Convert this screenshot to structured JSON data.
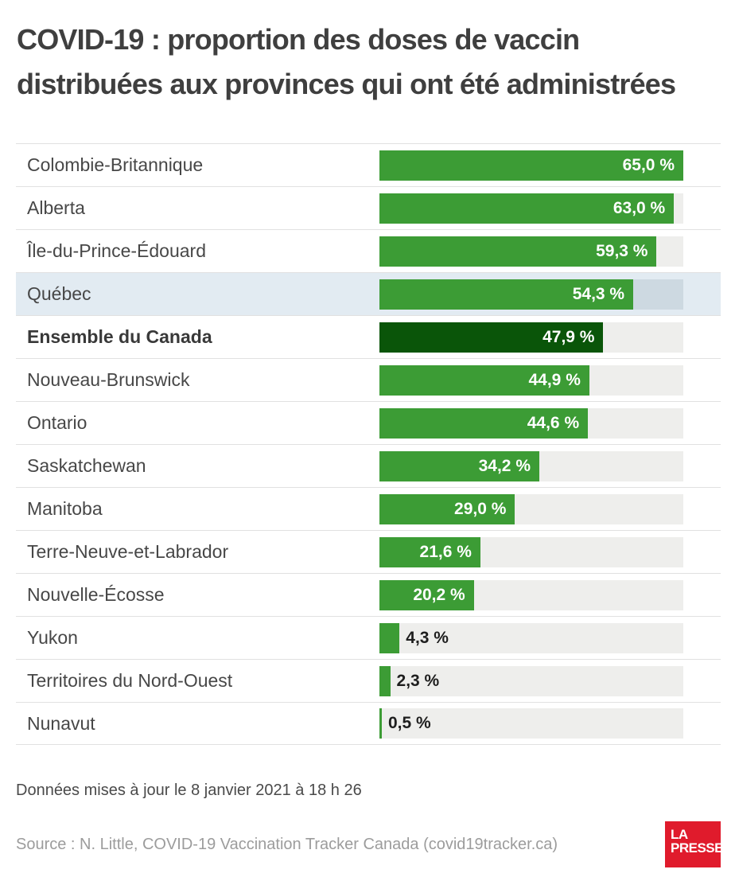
{
  "title": {
    "line1": "COVID-19 : proportion des doses de vaccin",
    "line2": "distribuées aux provinces qui ont été administrées"
  },
  "chart_data": {
    "type": "bar",
    "orientation": "horizontal",
    "title": "COVID-19 : proportion des doses de vaccin distribuées aux provinces qui ont été administrées",
    "unit": "%",
    "xlabel": "",
    "ylabel": "",
    "xlim": [
      0,
      65
    ],
    "scale_max": 65,
    "grid": false,
    "legend": "none",
    "categories": [
      "Colombie-Britannique",
      "Alberta",
      "Île-du-Prince-Édouard",
      "Québec",
      "Ensemble du Canada",
      "Nouveau-Brunswick",
      "Ontario",
      "Saskatchewan",
      "Manitoba",
      "Terre-Neuve-et-Labrador",
      "Nouvelle-Écosse",
      "Yukon",
      "Territoires du Nord-Ouest",
      "Nunavut"
    ],
    "values": [
      65.0,
      63.0,
      59.3,
      54.3,
      47.9,
      44.9,
      44.6,
      34.2,
      29.0,
      21.6,
      20.2,
      4.3,
      2.3,
      0.5
    ],
    "value_labels": [
      "65,0 %",
      "63,0 %",
      "59,3 %",
      "54,3 %",
      "47,9 %",
      "44,9 %",
      "44,6 %",
      "34,2 %",
      "29,0 %",
      "21,6 %",
      "20,2 %",
      "4,3 %",
      "2,3 %",
      "0,5 %"
    ],
    "highlighted_category": "Québec",
    "emphasized_category": "Ensemble du Canada",
    "label_outside_categories": [
      "Yukon",
      "Territoires du Nord-Ouest",
      "Nunavut"
    ]
  },
  "colors": {
    "bar_green": "#3c9c35",
    "bar_dark_green": "#0a5509",
    "bar_track": "#eeeeec",
    "highlight_row": "#e2ebf2",
    "highlight_track": "#cdd9e1",
    "logo_red": "#e01b2c"
  },
  "footer": {
    "updated": "Données mises à jour le 8 janvier 2021 à 18 h 26",
    "source": "Source : N. Little, COVID-19 Vaccination Tracker Canada (covid19tracker.ca)"
  },
  "logo": {
    "line1": "LA",
    "line2": "PRESSE"
  }
}
